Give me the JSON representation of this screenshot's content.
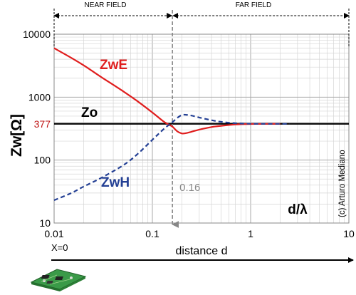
{
  "chart_data": {
    "type": "line",
    "x_scale": "log",
    "y_scale": "log",
    "xlim": [
      0.01,
      10
    ],
    "ylim": [
      10,
      10000
    ],
    "grid": true,
    "xlabel": "distance d",
    "ylabel": "Zw[Ω]",
    "x_ticks": [
      "0.01",
      "0.1",
      "1",
      "10"
    ],
    "y_ticks": [
      "10",
      "100",
      "1000",
      "10000"
    ],
    "regions": [
      {
        "label": "NEAR FIELD",
        "from": 0.01,
        "to": 0.16
      },
      {
        "label": "FAR FIELD",
        "from": 0.16,
        "to": 10
      }
    ],
    "reference_line": {
      "label": "Zo",
      "value": 377,
      "value_label": "377"
    },
    "boundary": {
      "x": 0.16,
      "label": "0.16"
    },
    "axis_note": "d/λ",
    "origin_label": "X=0",
    "credit": "(c) Arturo Mediano",
    "series": [
      {
        "name": "ZwE",
        "color": "#e01e1e",
        "style": "solid",
        "x": [
          0.01,
          0.015,
          0.02,
          0.03,
          0.05,
          0.07,
          0.1,
          0.13,
          0.15,
          0.16,
          0.18,
          0.2,
          0.22,
          0.25,
          0.3,
          0.4,
          0.5,
          0.7,
          1,
          1.5,
          2
        ],
        "y": [
          6000,
          4200,
          3200,
          2100,
          1250,
          870,
          570,
          410,
          360,
          340,
          285,
          265,
          268,
          282,
          305,
          335,
          350,
          368,
          375,
          377,
          377
        ]
      },
      {
        "name": "ZwH",
        "color": "#233f94",
        "style": "dashed",
        "x": [
          0.01,
          0.015,
          0.02,
          0.03,
          0.05,
          0.07,
          0.1,
          0.13,
          0.15,
          0.16,
          0.18,
          0.2,
          0.22,
          0.25,
          0.3,
          0.4,
          0.5,
          0.7,
          1,
          1.5,
          2.5
        ],
        "y": [
          23,
          30,
          38,
          52,
          82,
          123,
          210,
          310,
          370,
          400,
          470,
          520,
          525,
          510,
          475,
          430,
          405,
          385,
          378,
          377,
          377
        ]
      }
    ]
  },
  "colors": {
    "reference": "#000000",
    "boundary": "#888888",
    "grid": "#d6d6d6",
    "ytick_highlight": "#c01818"
  },
  "icons": [
    "pcb-board-icon"
  ]
}
